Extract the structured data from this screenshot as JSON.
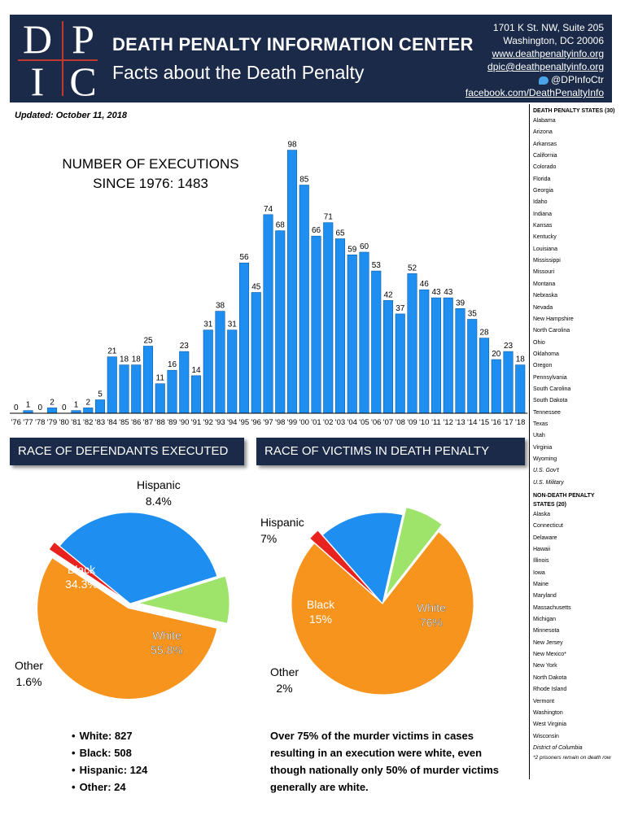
{
  "header": {
    "logo_letters": [
      "D",
      "P",
      "I",
      "C"
    ],
    "org_name": "DEATH PENALTY INFORMATION CENTER",
    "subtitle": "Facts about the Death Penalty",
    "address_line1": "1701 K St. NW, Suite 205",
    "address_line2": "Washington, DC 20006",
    "website": "www.deathpenaltyinfo.org",
    "email": "dpic@deathpenaltyinfo.org",
    "twitter": "@DPInfoCtr",
    "facebook": "facebook.com/DeathPenaltyInfo"
  },
  "updated": "Updated: October 11, 2018",
  "executions": {
    "title_line1": "NUMBER OF EXECUTIONS",
    "title_line2": "SINCE 1976: 1483"
  },
  "chart_data": [
    {
      "type": "bar",
      "title": "NUMBER OF EXECUTIONS SINCE 1976: 1483",
      "categories": [
        "'76",
        "'77",
        "'78",
        "'79",
        "'80",
        "'81",
        "'82",
        "'83",
        "'84",
        "'85",
        "'86",
        "'87",
        "'88",
        "'89",
        "'90",
        "'91",
        "'92",
        "'93",
        "'94",
        "'95",
        "'96",
        "'97",
        "'98",
        "'99",
        "'00",
        "'01",
        "'02",
        "'03",
        "'04",
        "'05",
        "'06",
        "'07",
        "'08",
        "'09",
        "'10",
        "'11",
        "'12",
        "'13",
        "'14",
        "'15",
        "'16",
        "'17",
        "'18"
      ],
      "values": [
        0,
        1,
        0,
        2,
        0,
        1,
        2,
        5,
        21,
        18,
        18,
        25,
        11,
        16,
        23,
        14,
        31,
        38,
        31,
        56,
        45,
        74,
        68,
        98,
        85,
        66,
        71,
        65,
        59,
        60,
        53,
        42,
        37,
        52,
        46,
        43,
        43,
        39,
        35,
        28,
        20,
        23,
        18
      ],
      "labeled": [
        true,
        true,
        true,
        true,
        true,
        true,
        true,
        true,
        true,
        true,
        true,
        true,
        true,
        true,
        true,
        true,
        true,
        true,
        true,
        true,
        true,
        true,
        true,
        true,
        true,
        true,
        true,
        true,
        true,
        true,
        true,
        true,
        true,
        true,
        true,
        true,
        true,
        true,
        true,
        true,
        true,
        true,
        true
      ],
      "color": "#1f8ef1",
      "ylim": [
        0,
        100
      ]
    },
    {
      "type": "pie",
      "title": "RACE OF DEFENDANTS EXECUTED",
      "slices": [
        {
          "name": "White",
          "value": 55.8,
          "color": "#f7941d"
        },
        {
          "name": "Other",
          "value": 1.6,
          "color": "#e8231f"
        },
        {
          "name": "Black",
          "value": 34.3,
          "color": "#1f8ef1"
        },
        {
          "name": "Hispanic",
          "value": 8.4,
          "color": "#9ee36a"
        }
      ]
    },
    {
      "type": "pie",
      "title": "RACE OF VICTIMS IN DEATH PENALTY CASES",
      "slices": [
        {
          "name": "White",
          "value": 76,
          "color": "#f7941d"
        },
        {
          "name": "Other",
          "value": 2,
          "color": "#e8231f"
        },
        {
          "name": "Black",
          "value": 15,
          "color": "#1f8ef1"
        },
        {
          "name": "Hispanic",
          "value": 7,
          "color": "#9ee36a"
        }
      ]
    }
  ],
  "defendants": {
    "header": "RACE OF DEFENDANTS EXECUTED",
    "black_name": "Black",
    "black_pct": "34.3%",
    "white_name": "White",
    "white_pct": "55.8%",
    "hispanic_name": "Hispanic",
    "hispanic_pct": "8.4%",
    "other_name": "Other",
    "other_pct": "1.6%",
    "counts": [
      "White: 827",
      "Black: 508",
      "Hispanic: 124",
      "Other: 24"
    ]
  },
  "victims": {
    "header": "RACE OF VICTIMS IN DEATH PENALTY CASES",
    "black_name": "Black",
    "black_pct": "15%",
    "white_name": "White",
    "white_pct": "76%",
    "hispanic_name": "Hispanic",
    "hispanic_pct": "7%",
    "other_name": "Other",
    "other_pct": "2%",
    "note": "Over 75% of the murder victims in cases resulting in an execution were white, even though nationally only 50% of murder victims generally are white."
  },
  "sidebar": {
    "dp_heading": "DEATH PENALTY STATES (30)",
    "dp_states": [
      "Alabama",
      "Arizona",
      "Arkansas",
      "California",
      "Colorado",
      "Florida",
      "Georgia",
      "Idaho",
      "Indiana",
      "Kansas",
      "Kentucky",
      "Louisiana",
      "Mississippi",
      "Missouri",
      "Montana",
      "Nebraska",
      "Nevada",
      "New Hampshire",
      "North Carolina",
      "Ohio",
      "Oklahoma",
      "Oregon",
      "Pennsylvania",
      "South Carolina",
      "South Dakota",
      "Tennessee",
      "Texas",
      "Utah",
      "Virginia",
      "Wyoming"
    ],
    "dp_federal": [
      "U.S. Gov't",
      "U.S. Military"
    ],
    "ndp_heading": "NON-DEATH PENALTY STATES (20)",
    "ndp_states": [
      "Alaska",
      "Connecticut",
      "Delaware",
      "Hawaii",
      "Illinois",
      "Iowa",
      "Maine",
      "Maryland",
      "Massachusetts",
      "Michigan",
      "Minnesota",
      "New Jersey",
      "New Mexico*",
      "New York",
      "North Dakota",
      "Rhode Island",
      "Vermont",
      "Washington",
      "West Virginia",
      "Wisconsin"
    ],
    "ndp_district": "District of Columbia",
    "footnote": "*2 prisoners remain on death row"
  }
}
